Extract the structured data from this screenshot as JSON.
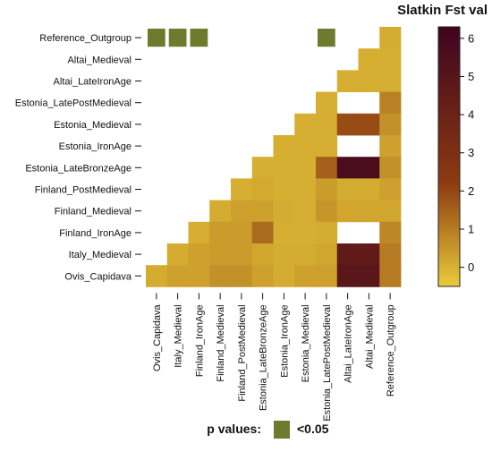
{
  "chart_data": {
    "type": "heatmap",
    "title": "Slatkin Fst val",
    "rows": [
      "Reference_Outgroup",
      "Altai_Medieval",
      "Altai_LateIronAge",
      "Estonia_LatePostMedieval",
      "Estonia_Medieval",
      "Estonia_IronAge",
      "Estonia_LateBronzeAge",
      "Finland_PostMedieval",
      "Finland_Medieval",
      "Finland_IronAge",
      "Italy_Medieval",
      "Ovis_Capidava"
    ],
    "columns": [
      "Ovis_Capidava",
      "Italy_Medieval",
      "Finland_IronAge",
      "Finland_Medieval",
      "Finland_PostMedieval",
      "Estonia_LateBronzeAge",
      "Estonia_IronAge",
      "Estonia_Medieval",
      "Estonia_LatePostMedieval",
      "Altai_LateIronAge",
      "Altai_Medieval",
      "Reference_Outgroup"
    ],
    "values": [
      [
        null,
        null,
        null,
        null,
        null,
        null,
        null,
        null,
        null,
        null,
        null,
        0.1
      ],
      [
        null,
        null,
        null,
        null,
        null,
        null,
        null,
        null,
        null,
        null,
        0.05,
        0.05
      ],
      [
        null,
        null,
        null,
        null,
        null,
        null,
        null,
        null,
        null,
        0.05,
        0.05,
        0.05
      ],
      [
        null,
        null,
        null,
        null,
        null,
        null,
        null,
        null,
        0.05,
        null,
        null,
        0.9
      ],
      [
        null,
        null,
        null,
        null,
        null,
        null,
        null,
        0.05,
        0.05,
        1.9,
        1.9,
        0.6
      ],
      [
        null,
        null,
        null,
        null,
        null,
        null,
        0.05,
        0.05,
        0.05,
        null,
        null,
        0.3
      ],
      [
        null,
        null,
        null,
        null,
        null,
        0.05,
        0.05,
        0.05,
        1.5,
        5.6,
        5.6,
        0.6
      ],
      [
        null,
        null,
        null,
        null,
        0.05,
        0.15,
        0.05,
        0.05,
        0.4,
        0.1,
        0.1,
        0.3
      ],
      [
        null,
        null,
        null,
        0.1,
        0.3,
        0.3,
        0.1,
        0.05,
        0.5,
        0.2,
        0.2,
        0.2
      ],
      [
        null,
        null,
        0.05,
        0.4,
        0.4,
        1.3,
        0.05,
        0.05,
        0.1,
        null,
        null,
        0.8
      ],
      [
        null,
        0.1,
        0.3,
        0.4,
        0.4,
        0.2,
        0.1,
        0.1,
        0.2,
        4.6,
        4.6,
        1.0
      ],
      [
        0.1,
        0.3,
        0.3,
        0.6,
        0.6,
        0.3,
        0.1,
        0.3,
        0.3,
        4.9,
        4.9,
        1.0
      ]
    ],
    "significant": [
      [
        0,
        0
      ],
      [
        0,
        1
      ],
      [
        0,
        2
      ],
      [
        0,
        8
      ]
    ],
    "colorbar": {
      "min": -0.5,
      "max": 6.3,
      "ticks": [
        0,
        1,
        2,
        3,
        4,
        5,
        6
      ]
    },
    "colors": {
      "low": "#e9cc3a",
      "mid": "#8c3a10",
      "high": "#3e0420",
      "significant": "#6e7b2e"
    },
    "legend": {
      "label": "p values:",
      "value": "<0.05"
    }
  }
}
